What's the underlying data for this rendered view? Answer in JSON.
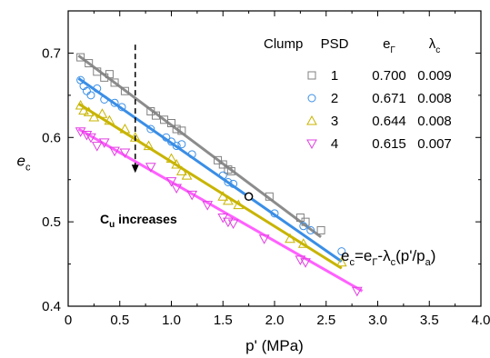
{
  "chart_data": {
    "type": "scatter",
    "xlabel": "p' (MPa)",
    "ylabel": "e_c",
    "xlim": [
      0,
      4.0
    ],
    "ylim": [
      0.4,
      0.75
    ],
    "xticks": [
      "0",
      "0.5",
      "1.0",
      "1.5",
      "2.0",
      "2.5",
      "3.0",
      "3.5",
      "4.0"
    ],
    "xtick_values": [
      0,
      0.5,
      1.0,
      1.5,
      2.0,
      2.5,
      3.0,
      3.5,
      4.0
    ],
    "yticks": [
      "0.4",
      "0.5",
      "0.6",
      "0.7"
    ],
    "ytick_values": [
      0.4,
      0.5,
      0.6,
      0.7
    ],
    "legend": {
      "headers": [
        "Clump",
        "PSD",
        "eΓ",
        "λc"
      ],
      "placement": "top-right",
      "rows": [
        {
          "psd": "1",
          "e_gamma": "0.700",
          "lambda_c": "0.009",
          "marker": "square",
          "color": "#808080"
        },
        {
          "psd": "2",
          "e_gamma": "0.671",
          "lambda_c": "0.008",
          "marker": "circle",
          "color": "#3A8EE6"
        },
        {
          "psd": "3",
          "e_gamma": "0.644",
          "lambda_c": "0.008",
          "marker": "triangle-up",
          "color": "#C8B400"
        },
        {
          "psd": "4",
          "e_gamma": "0.615",
          "lambda_c": "0.007",
          "marker": "triangle-down",
          "color": "#E040E0"
        }
      ]
    },
    "series": [
      {
        "psd": "1",
        "marker": "square",
        "color": "#808080",
        "line_color": "#8C8C8C",
        "fit": {
          "x": [
            0.1,
            2.45
          ],
          "y": [
            0.697,
            0.482
          ]
        },
        "points": [
          [
            0.12,
            0.695
          ],
          [
            0.2,
            0.688
          ],
          [
            0.28,
            0.678
          ],
          [
            0.35,
            0.671
          ],
          [
            0.4,
            0.675
          ],
          [
            0.45,
            0.665
          ],
          [
            0.55,
            0.655
          ],
          [
            0.8,
            0.631
          ],
          [
            0.85,
            0.626
          ],
          [
            0.93,
            0.621
          ],
          [
            1.0,
            0.617
          ],
          [
            1.05,
            0.61
          ],
          [
            1.1,
            0.608
          ],
          [
            1.45,
            0.573
          ],
          [
            1.5,
            0.568
          ],
          [
            1.55,
            0.562
          ],
          [
            1.58,
            0.56
          ],
          [
            1.95,
            0.53
          ],
          [
            2.25,
            0.505
          ],
          [
            2.3,
            0.5
          ],
          [
            2.45,
            0.49
          ]
        ]
      },
      {
        "psd": "2",
        "marker": "circle",
        "color": "#3A8EE6",
        "line_color": "#3A8EE6",
        "fit": {
          "x": [
            0.1,
            2.65
          ],
          "y": [
            0.67,
            0.453
          ]
        },
        "points": [
          [
            0.12,
            0.668
          ],
          [
            0.15,
            0.661
          ],
          [
            0.18,
            0.655
          ],
          [
            0.22,
            0.65
          ],
          [
            0.28,
            0.658
          ],
          [
            0.35,
            0.645
          ],
          [
            0.45,
            0.641
          ],
          [
            0.52,
            0.636
          ],
          [
            0.8,
            0.61
          ],
          [
            0.95,
            0.6
          ],
          [
            1.0,
            0.595
          ],
          [
            1.05,
            0.59
          ],
          [
            1.1,
            0.592
          ],
          [
            1.2,
            0.58
          ],
          [
            1.5,
            0.555
          ],
          [
            1.55,
            0.547
          ],
          [
            1.6,
            0.545
          ],
          [
            2.0,
            0.51
          ],
          [
            2.28,
            0.495
          ],
          [
            2.35,
            0.49
          ],
          [
            2.65,
            0.465
          ]
        ]
      },
      {
        "psd": "3",
        "marker": "triangle-up",
        "color": "#C8B400",
        "line_color": "#C8B400",
        "fit": {
          "x": [
            0.1,
            2.65
          ],
          "y": [
            0.64,
            0.445
          ]
        },
        "points": [
          [
            0.12,
            0.638
          ],
          [
            0.15,
            0.632
          ],
          [
            0.2,
            0.63
          ],
          [
            0.25,
            0.624
          ],
          [
            0.33,
            0.628
          ],
          [
            0.4,
            0.62
          ],
          [
            0.55,
            0.61
          ],
          [
            0.65,
            0.6
          ],
          [
            0.78,
            0.59
          ],
          [
            1.0,
            0.575
          ],
          [
            1.05,
            0.568
          ],
          [
            1.1,
            0.56
          ],
          [
            1.15,
            0.555
          ],
          [
            1.5,
            0.53
          ],
          [
            1.55,
            0.525
          ],
          [
            1.65,
            0.52
          ],
          [
            2.15,
            0.48
          ],
          [
            2.28,
            0.474
          ],
          [
            2.65,
            0.452
          ]
        ]
      },
      {
        "psd": "4",
        "marker": "triangle-down",
        "color": "#E040E0",
        "line_color": "#FF60FF",
        "fit": {
          "x": [
            0.1,
            2.85
          ],
          "y": [
            0.61,
            0.418
          ]
        },
        "points": [
          [
            0.12,
            0.607
          ],
          [
            0.18,
            0.603
          ],
          [
            0.22,
            0.6
          ],
          [
            0.28,
            0.59
          ],
          [
            0.35,
            0.594
          ],
          [
            0.45,
            0.584
          ],
          [
            0.55,
            0.582
          ],
          [
            0.8,
            0.565
          ],
          [
            1.0,
            0.548
          ],
          [
            1.05,
            0.54
          ],
          [
            1.2,
            0.532
          ],
          [
            1.35,
            0.52
          ],
          [
            1.5,
            0.505
          ],
          [
            1.55,
            0.5
          ],
          [
            1.6,
            0.498
          ],
          [
            1.9,
            0.48
          ],
          [
            2.25,
            0.455
          ],
          [
            2.3,
            0.452
          ],
          [
            2.8,
            0.418
          ]
        ]
      }
    ],
    "highlight_points": [
      {
        "x": 1.75,
        "y": 0.53,
        "marker": "circle-open-black"
      }
    ],
    "annotations": {
      "arrow_label_main": "C",
      "arrow_label_sub": "u",
      "arrow_label_rest": " increases",
      "arrow_x": 0.65,
      "arrow_y_from": 0.71,
      "arrow_y_to": 0.558,
      "equation": "e_c=e_Γ-λ_c(p'/p_a)"
    },
    "grid": false
  }
}
